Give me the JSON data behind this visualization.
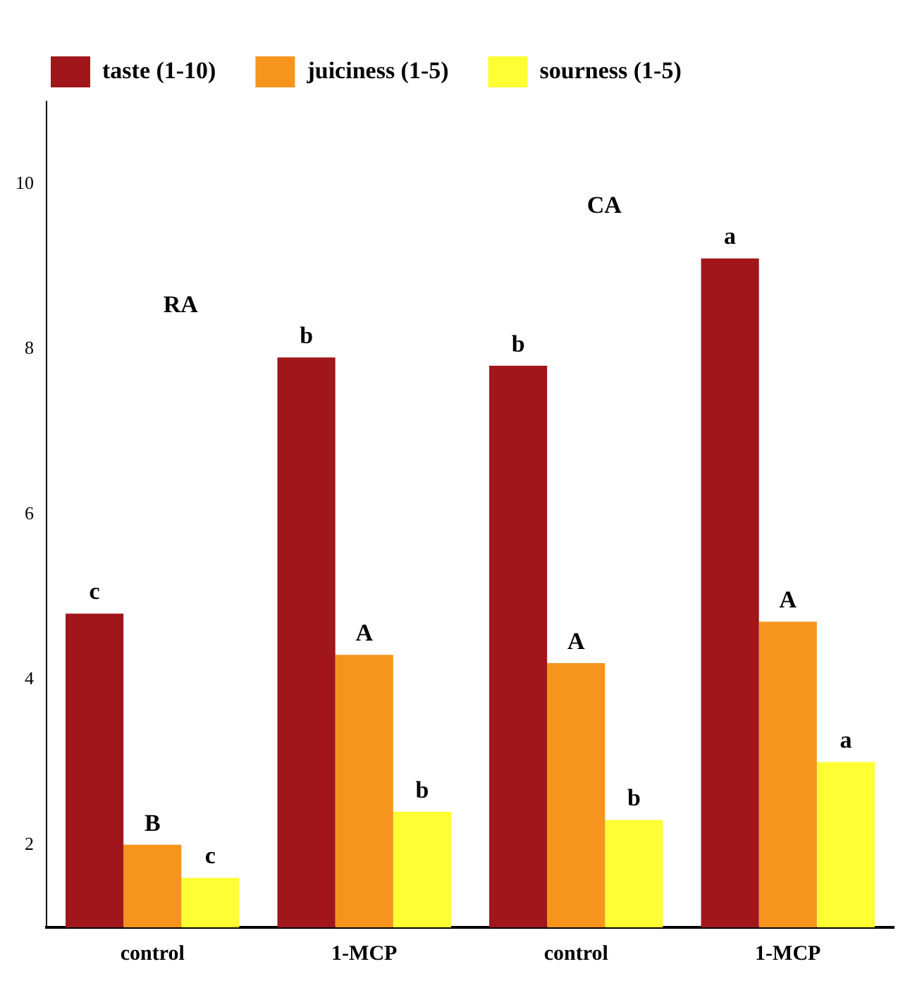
{
  "chart_data": {
    "type": "bar",
    "categories": [
      "control",
      "1-MCP",
      "control",
      "1-MCP"
    ],
    "series": [
      {
        "name": "taste (1-10)",
        "color": "#a0161b",
        "values": [
          4.8,
          7.9,
          7.8,
          9.1
        ],
        "value_labels": [
          "c",
          "b",
          "b",
          "a"
        ]
      },
      {
        "name": "juiciness (1-5)",
        "color": "#f7941d",
        "values": [
          2.0,
          4.3,
          4.2,
          4.7
        ],
        "value_labels": [
          "B",
          "A",
          "A",
          "A"
        ]
      },
      {
        "name": "sourness (1-5)",
        "color": "#ffff33",
        "values": [
          1.6,
          2.4,
          2.3,
          3.0
        ],
        "value_labels": [
          "c",
          "b",
          "b",
          "a"
        ]
      }
    ],
    "ylim": [
      1,
      11
    ],
    "yticks": [
      2,
      4,
      6,
      8,
      10
    ],
    "grid": false,
    "legend": "top left",
    "annotations": [
      "RA",
      "CA"
    ]
  }
}
